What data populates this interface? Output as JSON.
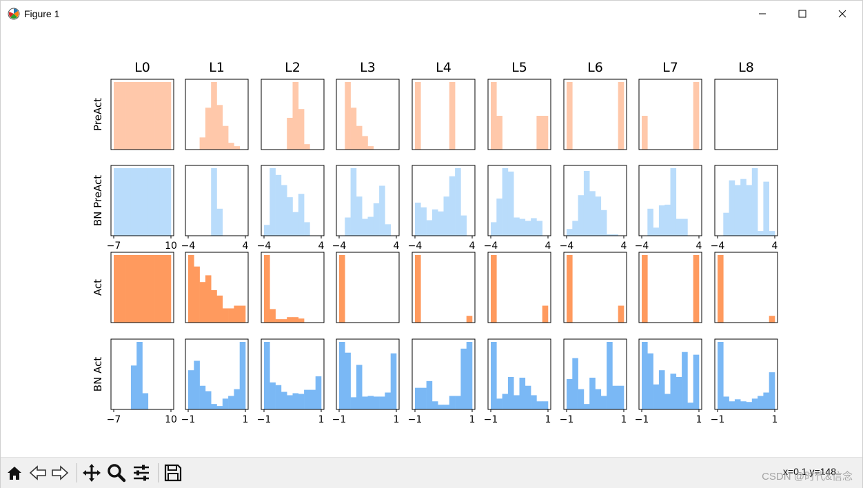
{
  "window": {
    "title": "Figure 1",
    "icon": "matplotlib-icon",
    "controls": [
      "minimize-icon",
      "maximize-icon",
      "close-icon"
    ]
  },
  "toolbar": {
    "buttons": [
      "home-icon",
      "back-icon",
      "forward-icon",
      "pan-icon",
      "zoom-icon",
      "configure-subplots-icon",
      "save-icon"
    ],
    "status": "x=0.1  y=148",
    "watermark": "CSDN @时代&信念"
  },
  "chart_data": {
    "type": "bar",
    "layout_rows": 4,
    "layout_cols": 9,
    "column_titles": [
      "L0",
      "L1",
      "L2",
      "L3",
      "L4",
      "L5",
      "L6",
      "L7",
      "L8"
    ],
    "row_labels": [
      "PreAct",
      "BN PreAct",
      "Act",
      "BN Act"
    ],
    "row_colors": [
      "#ffc8aa",
      "#b9dcfb",
      "#ff9a5e",
      "#7ab8f5"
    ],
    "bins": 10,
    "rows": [
      {
        "name": "PreAct",
        "color": "#ffc8aa",
        "xlim": [
          -4,
          4
        ],
        "xticks": [],
        "xticks_first": [],
        "xlim_first": [
          -7,
          10
        ],
        "panels": [
          {
            "hist": [
              1,
              1,
              1,
              1,
              1,
              1,
              1,
              1,
              1,
              1
            ]
          },
          {
            "hist": [
              0,
              0,
              0.18,
              0.62,
              1.0,
              0.66,
              0.35,
              0.1,
              0.05,
              0
            ]
          },
          {
            "hist": [
              0,
              0,
              0,
              0,
              0.47,
              1.0,
              0.6,
              0.08,
              0,
              0
            ]
          },
          {
            "hist": [
              0,
              1.0,
              0.62,
              0.35,
              0.2,
              0.05,
              0,
              0,
              0,
              0
            ]
          },
          {
            "hist": [
              1.0,
              0,
              0,
              0,
              0,
              0,
              1.0,
              0,
              0,
              0
            ]
          },
          {
            "hist": [
              1.0,
              0.5,
              0,
              0,
              0,
              0,
              0,
              0,
              0.5,
              0.5
            ]
          },
          {
            "hist": [
              1.0,
              0,
              0,
              0,
              0,
              0,
              0,
              0,
              0,
              1.0
            ]
          },
          {
            "hist": [
              0.5,
              0,
              0,
              0,
              0,
              0,
              0,
              0,
              0,
              1.0
            ]
          },
          {
            "hist": [
              0,
              0,
              0,
              0,
              0,
              0,
              0,
              0,
              0,
              0
            ]
          }
        ]
      },
      {
        "name": "BN PreAct",
        "color": "#b9dcfb",
        "xlim": [
          -4,
          4
        ],
        "xticks": [
          "−4",
          "4"
        ],
        "xticks_first": [
          "−7",
          "10"
        ],
        "xlim_first": [
          -7,
          10
        ],
        "panels": [
          {
            "hist": [
              1,
              1,
              1,
              1,
              1,
              1,
              1,
              1,
              1,
              1
            ]
          },
          {
            "hist": [
              0,
              0,
              0,
              0,
              1.0,
              0.4,
              0,
              0,
              0,
              0
            ]
          },
          {
            "hist": [
              0.16,
              1.0,
              0.9,
              0.75,
              0.57,
              0.35,
              0.62,
              0.2,
              0,
              0
            ]
          },
          {
            "hist": [
              0,
              0.27,
              1.0,
              0.58,
              0.25,
              0.28,
              0.48,
              0.74,
              0.17,
              0
            ]
          },
          {
            "hist": [
              0.49,
              0.42,
              0.23,
              0.39,
              0.36,
              0.58,
              0.88,
              1.0,
              0.3,
              0
            ]
          },
          {
            "hist": [
              0.2,
              0.55,
              1.0,
              0.95,
              0.27,
              0.25,
              0.22,
              0.26,
              0.22,
              0
            ]
          },
          {
            "hist": [
              0.1,
              0.22,
              0.6,
              0.96,
              0.66,
              0.58,
              0.38,
              0.02,
              0.02,
              0
            ]
          },
          {
            "hist": [
              0,
              0.4,
              0.12,
              0.45,
              0.46,
              1.0,
              0.25,
              0.25,
              0,
              0
            ]
          },
          {
            "hist": [
              0,
              0.34,
              0.82,
              0.75,
              0.84,
              0.75,
              1.0,
              0.07,
              0.8,
              0.07
            ]
          }
        ]
      },
      {
        "name": "Act",
        "color": "#ff9a5e",
        "xlim": [
          -4,
          4
        ],
        "xticks": [],
        "xticks_first": [],
        "xlim_first": [
          -7,
          10
        ],
        "panels": [
          {
            "hist": [
              1,
              1,
              1,
              1,
              1,
              1,
              1,
              1,
              1,
              1
            ]
          },
          {
            "hist": [
              1.0,
              0.83,
              0.6,
              0.7,
              0.48,
              0.4,
              0.21,
              0.21,
              0.25,
              0.25
            ]
          },
          {
            "hist": [
              1.0,
              0.2,
              0.05,
              0.05,
              0.08,
              0.08,
              0.06,
              0,
              0,
              0
            ]
          },
          {
            "hist": [
              1.0,
              0,
              0,
              0,
              0,
              0,
              0,
              0,
              0,
              0
            ]
          },
          {
            "hist": [
              1.0,
              0,
              0,
              0,
              0,
              0,
              0,
              0,
              0,
              0.1
            ]
          },
          {
            "hist": [
              1.0,
              0,
              0,
              0,
              0,
              0,
              0,
              0,
              0,
              0.25
            ]
          },
          {
            "hist": [
              1.0,
              0,
              0,
              0,
              0,
              0,
              0,
              0,
              0,
              0.25
            ]
          },
          {
            "hist": [
              1.0,
              0,
              0,
              0,
              0,
              0,
              0,
              0,
              0,
              1.0
            ]
          },
          {
            "hist": [
              1.0,
              0,
              0,
              0,
              0,
              0,
              0,
              0,
              0,
              0.1
            ]
          }
        ]
      },
      {
        "name": "BN Act",
        "color": "#7ab8f5",
        "xlim": [
          -1,
          1
        ],
        "xticks": [
          "−1",
          "1"
        ],
        "xticks_first": [
          "−7",
          "10"
        ],
        "xlim_first": [
          -7,
          10
        ],
        "panels": [
          {
            "hist": [
              0,
              0,
              0,
              0.65,
              1.0,
              0.24,
              0,
              0,
              0,
              0
            ]
          },
          {
            "hist": [
              0.58,
              0.72,
              0.35,
              0.27,
              0.08,
              0.05,
              0.16,
              0.2,
              0.3,
              1.0
            ]
          },
          {
            "hist": [
              1.0,
              0.4,
              0.36,
              0.26,
              0.21,
              0.24,
              0.23,
              0.29,
              0.29,
              0.49
            ]
          },
          {
            "hist": [
              1.0,
              0.84,
              0.18,
              0.66,
              0.19,
              0.2,
              0.19,
              0.19,
              0.25,
              0.83
            ]
          },
          {
            "hist": [
              0.32,
              0.32,
              0.42,
              0.12,
              0.07,
              0.07,
              0.2,
              0.2,
              0.9,
              1.0
            ]
          },
          {
            "hist": [
              1.0,
              0.16,
              0.23,
              0.48,
              0.21,
              0.47,
              0.35,
              0.21,
              0.12,
              0.12
            ]
          },
          {
            "hist": [
              0.45,
              0.76,
              0.3,
              0.08,
              0.47,
              0.3,
              0.2,
              1.0,
              0.35,
              0.35
            ]
          },
          {
            "hist": [
              1.0,
              0.83,
              0.37,
              0.58,
              0.23,
              0.53,
              0.48,
              0.85,
              0.1,
              0.81
            ]
          },
          {
            "hist": [
              1.0,
              0.19,
              0.12,
              0.15,
              0.12,
              0.11,
              0.16,
              0.2,
              0.25,
              0.55
            ]
          }
        ]
      }
    ]
  }
}
